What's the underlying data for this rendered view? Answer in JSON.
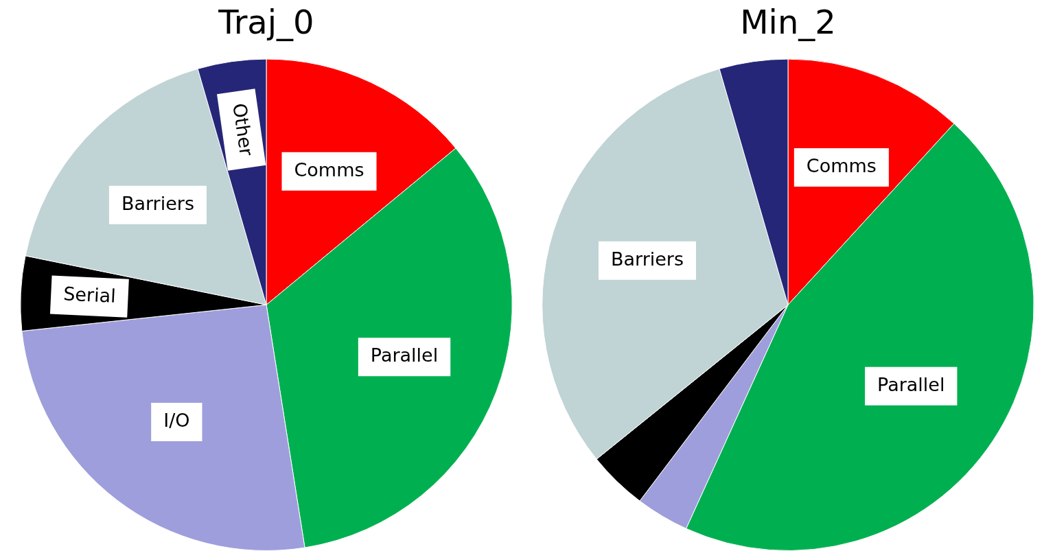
{
  "chart_data": [
    {
      "type": "pie",
      "title": "Traj_0",
      "categories": [
        "Comms",
        "Parallel",
        "I/O",
        "Serial",
        "Barriers",
        "Other"
      ],
      "values": [
        14,
        33.5,
        25.8,
        4.9,
        17.3,
        4.5
      ],
      "colors": [
        "#ff0000",
        "#00b050",
        "#9e9edc",
        "#000000",
        "#c0d3d5",
        "#262678"
      ],
      "legend": false
    },
    {
      "type": "pie",
      "title": "Min_2",
      "categories": [
        "Comms",
        "Parallel",
        null,
        null,
        "Barriers",
        null
      ],
      "values": [
        11.8,
        45.0,
        3.5,
        3.9,
        31.3,
        4.5
      ],
      "colors": [
        "#ff0000",
        "#00b050",
        "#9e9edc",
        "#000000",
        "#c0d3d5",
        "#262678"
      ],
      "legend": false
    }
  ]
}
